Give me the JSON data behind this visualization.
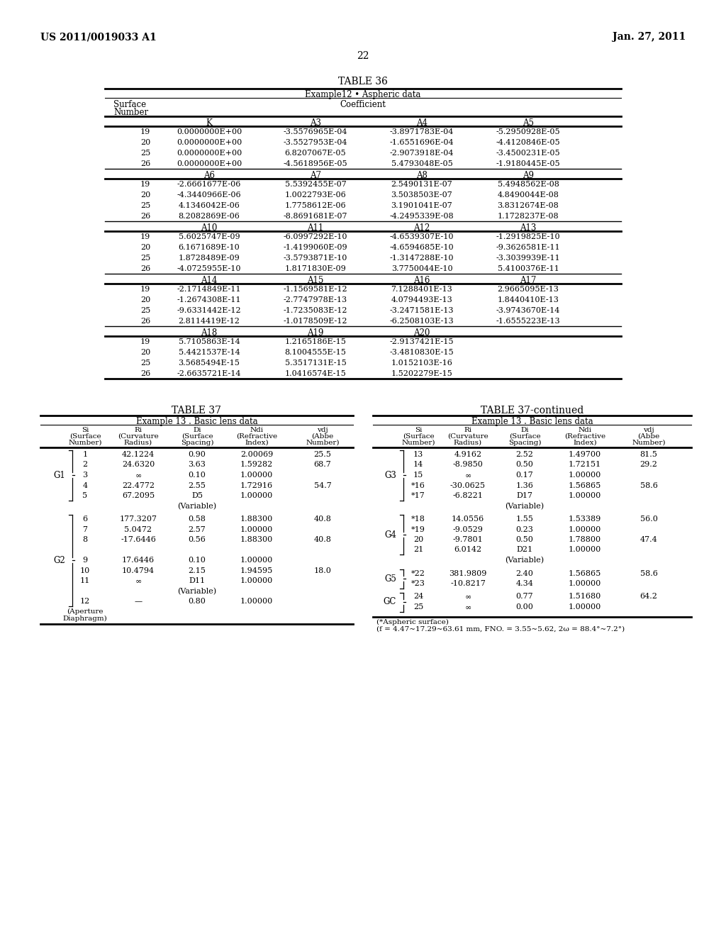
{
  "page_header_left": "US 2011/0019033 A1",
  "page_header_right": "Jan. 27, 2011",
  "page_number": "22",
  "table36": {
    "title": "TABLE 36",
    "subtitle": "Example12 • Aspheric data",
    "sections": [
      {
        "headers": [
          "K",
          "A3",
          "A4",
          "A5"
        ],
        "rows": [
          [
            "19",
            "0.0000000E+00",
            "-3.5576965E-04",
            "-3.8971783E-04",
            "-5.2950928E-05"
          ],
          [
            "20",
            "0.0000000E+00",
            "-3.5527953E-04",
            "-1.6551696E-04",
            "-4.4120846E-05"
          ],
          [
            "25",
            "0.0000000E+00",
            "6.8207067E-05",
            "-2.9073918E-04",
            "-3.4500231E-05"
          ],
          [
            "26",
            "0.0000000E+00",
            "-4.5618956E-05",
            "5.4793048E-05",
            "-1.9180445E-05"
          ]
        ]
      },
      {
        "headers": [
          "A6",
          "A7",
          "A8",
          "A9"
        ],
        "rows": [
          [
            "19",
            "-2.6661677E-06",
            "5.5392455E-07",
            "2.5490131E-07",
            "5.4948562E-08"
          ],
          [
            "20",
            "-4.3440966E-06",
            "1.0022793E-06",
            "3.5038503E-07",
            "4.8490044E-08"
          ],
          [
            "25",
            "4.1346042E-06",
            "1.7758612E-06",
            "3.1901041E-07",
            "3.8312674E-08"
          ],
          [
            "26",
            "8.2082869E-06",
            "-8.8691681E-07",
            "-4.2495339E-08",
            "1.1728237E-08"
          ]
        ]
      },
      {
        "headers": [
          "A10",
          "A11",
          "A12",
          "A13"
        ],
        "rows": [
          [
            "19",
            "5.6025747E-09",
            "-6.0997292E-10",
            "-4.6539307E-10",
            "-1.2919825E-10"
          ],
          [
            "20",
            "6.1671689E-10",
            "-1.4199060E-09",
            "-4.6594685E-10",
            "-9.3626581E-11"
          ],
          [
            "25",
            "1.8728489E-09",
            "-3.5793871E-10",
            "-1.3147288E-10",
            "-3.3039939E-11"
          ],
          [
            "26",
            "-4.0725955E-10",
            "1.8171830E-09",
            "3.7750044E-10",
            "5.4100376E-11"
          ]
        ]
      },
      {
        "headers": [
          "A14",
          "A15",
          "A16",
          "A17"
        ],
        "rows": [
          [
            "19",
            "-2.1714849E-11",
            "-1.1569581E-12",
            "7.1288401E-13",
            "2.9665095E-13"
          ],
          [
            "20",
            "-1.2674308E-11",
            "-2.7747978E-13",
            "4.0794493E-13",
            "1.8440410E-13"
          ],
          [
            "25",
            "-9.6331442E-12",
            "-1.7235083E-12",
            "-3.2471581E-13",
            "-3.9743670E-14"
          ],
          [
            "26",
            "2.8114419E-12",
            "-1.0178509E-12",
            "-6.2508103E-13",
            "-1.6555223E-13"
          ]
        ]
      },
      {
        "headers": [
          "A18",
          "A19",
          "A20"
        ],
        "rows": [
          [
            "19",
            "5.7105863E-14",
            "1.2165186E-15",
            "-2.9137421E-15"
          ],
          [
            "20",
            "5.4421537E-14",
            "8.1004555E-15",
            "-3.4810830E-15"
          ],
          [
            "25",
            "3.5685494E-15",
            "5.3517131E-15",
            "1.0152103E-16"
          ],
          [
            "26",
            "-2.6635721E-14",
            "1.0416574E-15",
            "1.5202279E-15"
          ]
        ]
      }
    ]
  },
  "table37_left": {
    "title": "TABLE 37",
    "subtitle": "Example 13 . Basic lens data",
    "groups": [
      {
        "label": "G1",
        "rows": [
          [
            "1",
            "42.1224",
            "0.90",
            "2.00069",
            "25.5"
          ],
          [
            "2",
            "24.6320",
            "3.63",
            "1.59282",
            "68.7"
          ],
          [
            "3",
            "∞",
            "0.10",
            "1.00000",
            ""
          ],
          [
            "4",
            "22.4772",
            "2.55",
            "1.72916",
            "54.7"
          ],
          [
            "5",
            "67.2095",
            "D5",
            "1.00000",
            ""
          ],
          [
            "",
            "",
            "(Variable)",
            "",
            ""
          ]
        ]
      },
      {
        "label": "G2",
        "rows": [
          [
            "6",
            "177.3207",
            "0.58",
            "1.88300",
            "40.8"
          ],
          [
            "7",
            "5.0472",
            "2.57",
            "1.00000",
            ""
          ],
          [
            "8",
            "-17.6446",
            "0.56",
            "1.88300",
            "40.8"
          ],
          [
            "",
            "",
            "",
            "",
            ""
          ],
          [
            "9",
            "17.6446",
            "0.10",
            "1.00000",
            ""
          ],
          [
            "10",
            "10.4794",
            "2.15",
            "1.94595",
            "18.0"
          ],
          [
            "11",
            "∞",
            "D11",
            "1.00000",
            ""
          ],
          [
            "",
            "",
            "(Variable)",
            "",
            ""
          ],
          [
            "12",
            "—",
            "0.80",
            "1.00000",
            ""
          ]
        ]
      }
    ]
  },
  "table37_right": {
    "title": "TABLE 37-continued",
    "subtitle": "Example 13 . Basic lens data",
    "groups": [
      {
        "label": "G3",
        "rows": [
          [
            "13",
            "4.9162",
            "2.52",
            "1.49700",
            "81.5"
          ],
          [
            "14",
            "-8.9850",
            "0.50",
            "1.72151",
            "29.2"
          ],
          [
            "15",
            "∞",
            "0.17",
            "1.00000",
            ""
          ],
          [
            "*16",
            "-30.0625",
            "1.36",
            "1.56865",
            "58.6"
          ],
          [
            "*17",
            "-6.8221",
            "D17",
            "1.00000",
            ""
          ],
          [
            "",
            "",
            "(Variable)",
            "",
            ""
          ]
        ]
      },
      {
        "label": "G4",
        "rows": [
          [
            "*18",
            "14.0556",
            "1.55",
            "1.53389",
            "56.0"
          ],
          [
            "*19",
            "-9.0529",
            "0.23",
            "1.00000",
            ""
          ],
          [
            "20",
            "-9.7801",
            "0.50",
            "1.78800",
            "47.4"
          ],
          [
            "21",
            "6.0142",
            "D21",
            "1.00000",
            ""
          ],
          [
            "",
            "",
            "(Variable)",
            "",
            ""
          ]
        ]
      },
      {
        "label": "G5",
        "rows": [
          [
            "*22",
            "381.9809",
            "2.40",
            "1.56865",
            "58.6"
          ],
          [
            "*23",
            "-10.8217",
            "4.34",
            "1.00000",
            ""
          ]
        ]
      },
      {
        "label": "GC",
        "rows": [
          [
            "24",
            "∞",
            "0.77",
            "1.51680",
            "64.2"
          ],
          [
            "25",
            "∞",
            "0.00",
            "1.00000",
            ""
          ]
        ]
      }
    ],
    "footnote_line1": "(*Aspheric surface)",
    "footnote_line2": "(f = 4.47~17.29~63.61 mm, FNO. = 3.55~5.62, 2ω = 88.4°~7.2°)"
  }
}
